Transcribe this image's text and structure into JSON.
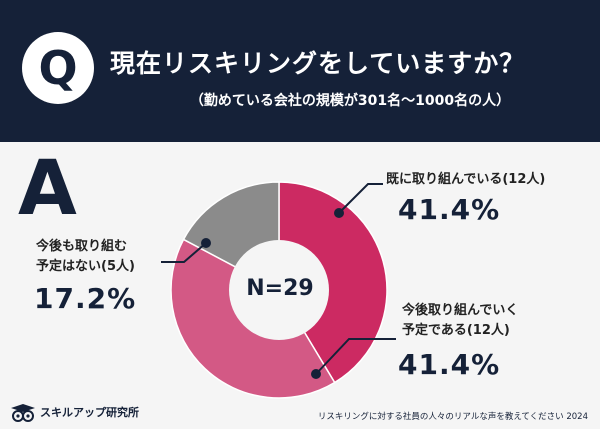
{
  "header": {
    "q_letter": "Q",
    "title": "現在リスキリングをしていますか？",
    "subtitle": "（勤めている会社の規模が301名〜1000名の人）"
  },
  "answer_letter": "A",
  "chart_data": {
    "type": "pie",
    "style": "donut",
    "total_label": "N=29",
    "slices": [
      {
        "label_line1": "既に取り組んでいる(12人)",
        "label_line2": "",
        "count": 12,
        "percent": 41.4,
        "percent_text": "41.4%",
        "color": "#cc2a62"
      },
      {
        "label_line1": "今後取り組んでいく",
        "label_line2": "予定である(12人)",
        "count": 12,
        "percent": 41.4,
        "percent_text": "41.4%",
        "color": "#d35985"
      },
      {
        "label_line1": "今後も取り組む",
        "label_line2": "予定はない(5人)",
        "count": 5,
        "percent": 17.2,
        "percent_text": "17.2%",
        "color": "#8b8b8b"
      }
    ],
    "colors": {
      "hole": "#f5f5f5",
      "leader": "#152138",
      "separator": "#ffffff"
    }
  },
  "footer": {
    "brand": "スキルアップ研究所",
    "note": "リスキリングに対する社員の人々のリアルな声を教えてください 2024"
  },
  "colors": {
    "navy": "#152138",
    "background": "#f5f5f5"
  }
}
